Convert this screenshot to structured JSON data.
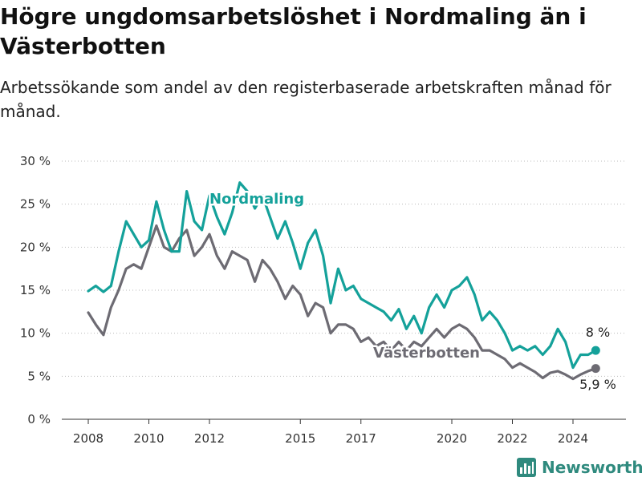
{
  "title": "Högre ungdomsarbetslöshet i Nordmaling än i Västerbotten",
  "subtitle": "Arbetssökande som andel av den registerbaserade arbetskraften månad för månad.",
  "brand": {
    "name": "Newsworthy",
    "icon": "bar-chart-logo-icon",
    "color": "#2f8a7e"
  },
  "chart_data": {
    "type": "line",
    "y_ticks": [
      "0 %",
      "5 %",
      "10 %",
      "15 %",
      "20 %",
      "25 %",
      "30 %"
    ],
    "x_ticks": [
      "2008",
      "2010",
      "2012",
      "2015",
      "2017",
      "2020",
      "2022",
      "2024"
    ],
    "ylim": [
      0,
      30
    ],
    "grid": true,
    "series": [
      {
        "name": "Nordmaling",
        "color": "#14a19a",
        "end_label": "8 %",
        "points": [
          [
            2008.0,
            14.9
          ],
          [
            2008.25,
            15.5
          ],
          [
            2008.5,
            14.8
          ],
          [
            2008.75,
            15.5
          ],
          [
            2009.0,
            19.5
          ],
          [
            2009.25,
            23.0
          ],
          [
            2009.5,
            21.5
          ],
          [
            2009.75,
            20.0
          ],
          [
            2010.0,
            20.8
          ],
          [
            2010.25,
            25.3
          ],
          [
            2010.5,
            22.0
          ],
          [
            2010.75,
            19.5
          ],
          [
            2011.0,
            19.5
          ],
          [
            2011.25,
            26.5
          ],
          [
            2011.5,
            23.0
          ],
          [
            2011.75,
            22.0
          ],
          [
            2012.0,
            26.0
          ],
          [
            2012.25,
            23.5
          ],
          [
            2012.5,
            21.5
          ],
          [
            2012.75,
            24.0
          ],
          [
            2013.0,
            27.5
          ],
          [
            2013.25,
            26.5
          ],
          [
            2013.5,
            24.5
          ],
          [
            2013.75,
            26.0
          ],
          [
            2014.0,
            23.5
          ],
          [
            2014.25,
            21.0
          ],
          [
            2014.5,
            23.0
          ],
          [
            2014.75,
            20.5
          ],
          [
            2015.0,
            17.5
          ],
          [
            2015.25,
            20.5
          ],
          [
            2015.5,
            22.0
          ],
          [
            2015.75,
            19.0
          ],
          [
            2016.0,
            13.5
          ],
          [
            2016.25,
            17.5
          ],
          [
            2016.5,
            15.0
          ],
          [
            2016.75,
            15.5
          ],
          [
            2017.0,
            14.0
          ],
          [
            2017.25,
            13.5
          ],
          [
            2017.5,
            13.0
          ],
          [
            2017.75,
            12.5
          ],
          [
            2018.0,
            11.5
          ],
          [
            2018.25,
            12.8
          ],
          [
            2018.5,
            10.5
          ],
          [
            2018.75,
            12.0
          ],
          [
            2019.0,
            10.0
          ],
          [
            2019.25,
            13.0
          ],
          [
            2019.5,
            14.5
          ],
          [
            2019.75,
            13.0
          ],
          [
            2020.0,
            15.0
          ],
          [
            2020.25,
            15.5
          ],
          [
            2020.5,
            16.5
          ],
          [
            2020.75,
            14.5
          ],
          [
            2021.0,
            11.5
          ],
          [
            2021.25,
            12.5
          ],
          [
            2021.5,
            11.5
          ],
          [
            2021.75,
            10.0
          ],
          [
            2022.0,
            8.0
          ],
          [
            2022.25,
            8.5
          ],
          [
            2022.5,
            8.0
          ],
          [
            2022.75,
            8.5
          ],
          [
            2023.0,
            7.5
          ],
          [
            2023.25,
            8.5
          ],
          [
            2023.5,
            10.5
          ],
          [
            2023.75,
            9.0
          ],
          [
            2024.0,
            6.0
          ],
          [
            2024.25,
            7.5
          ],
          [
            2024.5,
            7.5
          ],
          [
            2024.75,
            8.0
          ]
        ]
      },
      {
        "name": "Västerbotten",
        "color": "#6d6b73",
        "end_label": "5,9 %",
        "points": [
          [
            2008.0,
            12.4
          ],
          [
            2008.25,
            11.0
          ],
          [
            2008.5,
            9.8
          ],
          [
            2008.75,
            13.0
          ],
          [
            2009.0,
            15.0
          ],
          [
            2009.25,
            17.5
          ],
          [
            2009.5,
            18.0
          ],
          [
            2009.75,
            17.5
          ],
          [
            2010.0,
            20.0
          ],
          [
            2010.25,
            22.5
          ],
          [
            2010.5,
            20.0
          ],
          [
            2010.75,
            19.5
          ],
          [
            2011.0,
            21.0
          ],
          [
            2011.25,
            22.0
          ],
          [
            2011.5,
            19.0
          ],
          [
            2011.75,
            20.0
          ],
          [
            2012.0,
            21.5
          ],
          [
            2012.25,
            19.0
          ],
          [
            2012.5,
            17.5
          ],
          [
            2012.75,
            19.5
          ],
          [
            2013.0,
            19.0
          ],
          [
            2013.25,
            18.5
          ],
          [
            2013.5,
            16.0
          ],
          [
            2013.75,
            18.5
          ],
          [
            2014.0,
            17.5
          ],
          [
            2014.25,
            16.0
          ],
          [
            2014.5,
            14.0
          ],
          [
            2014.75,
            15.5
          ],
          [
            2015.0,
            14.5
          ],
          [
            2015.25,
            12.0
          ],
          [
            2015.5,
            13.5
          ],
          [
            2015.75,
            13.0
          ],
          [
            2016.0,
            10.0
          ],
          [
            2016.25,
            11.0
          ],
          [
            2016.5,
            11.0
          ],
          [
            2016.75,
            10.5
          ],
          [
            2017.0,
            9.0
          ],
          [
            2017.25,
            9.5
          ],
          [
            2017.5,
            8.5
          ],
          [
            2017.75,
            9.0
          ],
          [
            2018.0,
            8.0
          ],
          [
            2018.25,
            9.0
          ],
          [
            2018.5,
            8.0
          ],
          [
            2018.75,
            9.0
          ],
          [
            2019.0,
            8.5
          ],
          [
            2019.25,
            9.5
          ],
          [
            2019.5,
            10.5
          ],
          [
            2019.75,
            9.5
          ],
          [
            2020.0,
            10.5
          ],
          [
            2020.25,
            11.0
          ],
          [
            2020.5,
            10.5
          ],
          [
            2020.75,
            9.5
          ],
          [
            2021.0,
            8.0
          ],
          [
            2021.25,
            8.0
          ],
          [
            2021.5,
            7.5
          ],
          [
            2021.75,
            7.0
          ],
          [
            2022.0,
            6.0
          ],
          [
            2022.25,
            6.5
          ],
          [
            2022.5,
            6.0
          ],
          [
            2022.75,
            5.5
          ],
          [
            2023.0,
            4.8
          ],
          [
            2023.25,
            5.4
          ],
          [
            2023.5,
            5.6
          ],
          [
            2023.75,
            5.2
          ],
          [
            2024.0,
            4.7
          ],
          [
            2024.25,
            5.2
          ],
          [
            2024.5,
            5.6
          ],
          [
            2024.75,
            5.9
          ]
        ]
      }
    ]
  }
}
